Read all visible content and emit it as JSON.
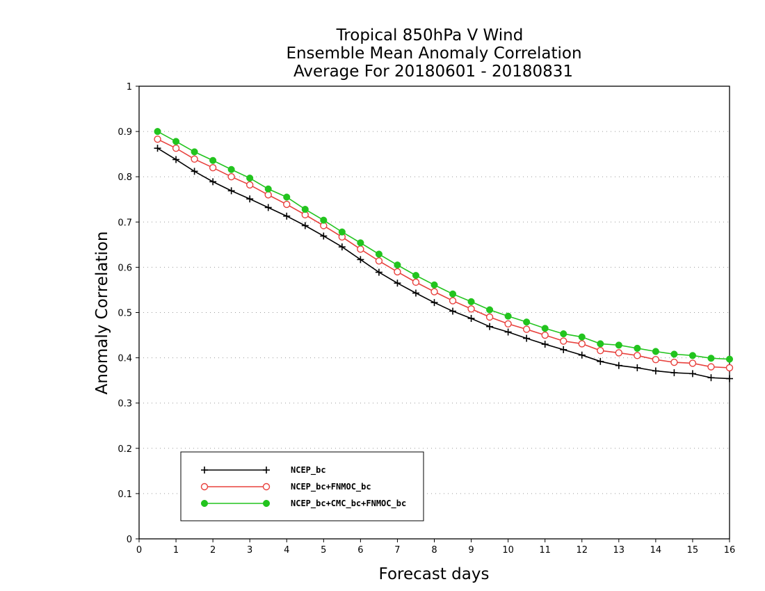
{
  "chart_data": {
    "type": "line",
    "title": [
      "Tropical 850hPa V Wind",
      "Ensemble Mean Anomaly Correlation",
      "Average For 20180601 - 20180831"
    ],
    "xlabel": "Forecast days",
    "ylabel": "Anomaly Correlation",
    "xlim": [
      0,
      16
    ],
    "ylim": [
      0,
      1
    ],
    "xticks": [
      0,
      1,
      2,
      3,
      4,
      5,
      6,
      7,
      8,
      9,
      10,
      11,
      12,
      13,
      14,
      15,
      16
    ],
    "yticks": [
      0,
      0.1,
      0.2,
      0.3,
      0.4,
      0.5,
      0.6,
      0.7,
      0.8,
      0.9,
      1
    ],
    "grid": "horizontal dotted",
    "legend_position": "bottom-left",
    "x": [
      0.5,
      1,
      1.5,
      2,
      2.5,
      3,
      3.5,
      4,
      4.5,
      5,
      5.5,
      6,
      6.5,
      7,
      7.5,
      8,
      8.5,
      9,
      9.5,
      10,
      10.5,
      11,
      11.5,
      12,
      12.5,
      13,
      13.5,
      14,
      14.5,
      15,
      15.5,
      16
    ],
    "series": [
      {
        "name": "NCEP_bc",
        "color": "#000000",
        "marker": "plus",
        "values": [
          0.863,
          0.838,
          0.812,
          0.789,
          0.769,
          0.751,
          0.732,
          0.713,
          0.692,
          0.669,
          0.645,
          0.617,
          0.589,
          0.565,
          0.543,
          0.522,
          0.503,
          0.487,
          0.469,
          0.457,
          0.443,
          0.43,
          0.418,
          0.406,
          0.392,
          0.383,
          0.378,
          0.371,
          0.367,
          0.365,
          0.356,
          0.354
        ]
      },
      {
        "name": "NCEP_bc+FNMOC_bc",
        "color": "#e8403c",
        "marker": "open-circle",
        "values": [
          0.883,
          0.863,
          0.839,
          0.82,
          0.8,
          0.782,
          0.76,
          0.739,
          0.716,
          0.692,
          0.667,
          0.64,
          0.614,
          0.59,
          0.567,
          0.546,
          0.526,
          0.508,
          0.49,
          0.475,
          0.463,
          0.45,
          0.437,
          0.431,
          0.416,
          0.411,
          0.405,
          0.396,
          0.39,
          0.388,
          0.38,
          0.378
        ]
      },
      {
        "name": "NCEP_bc+CMC_bc+FNMOC_bc",
        "color": "#22c41e",
        "marker": "filled-circle",
        "values": [
          0.9,
          0.878,
          0.855,
          0.836,
          0.816,
          0.797,
          0.773,
          0.755,
          0.728,
          0.704,
          0.678,
          0.654,
          0.629,
          0.605,
          0.582,
          0.561,
          0.541,
          0.524,
          0.506,
          0.492,
          0.479,
          0.465,
          0.453,
          0.446,
          0.431,
          0.428,
          0.421,
          0.414,
          0.408,
          0.405,
          0.399,
          0.397
        ]
      }
    ]
  }
}
